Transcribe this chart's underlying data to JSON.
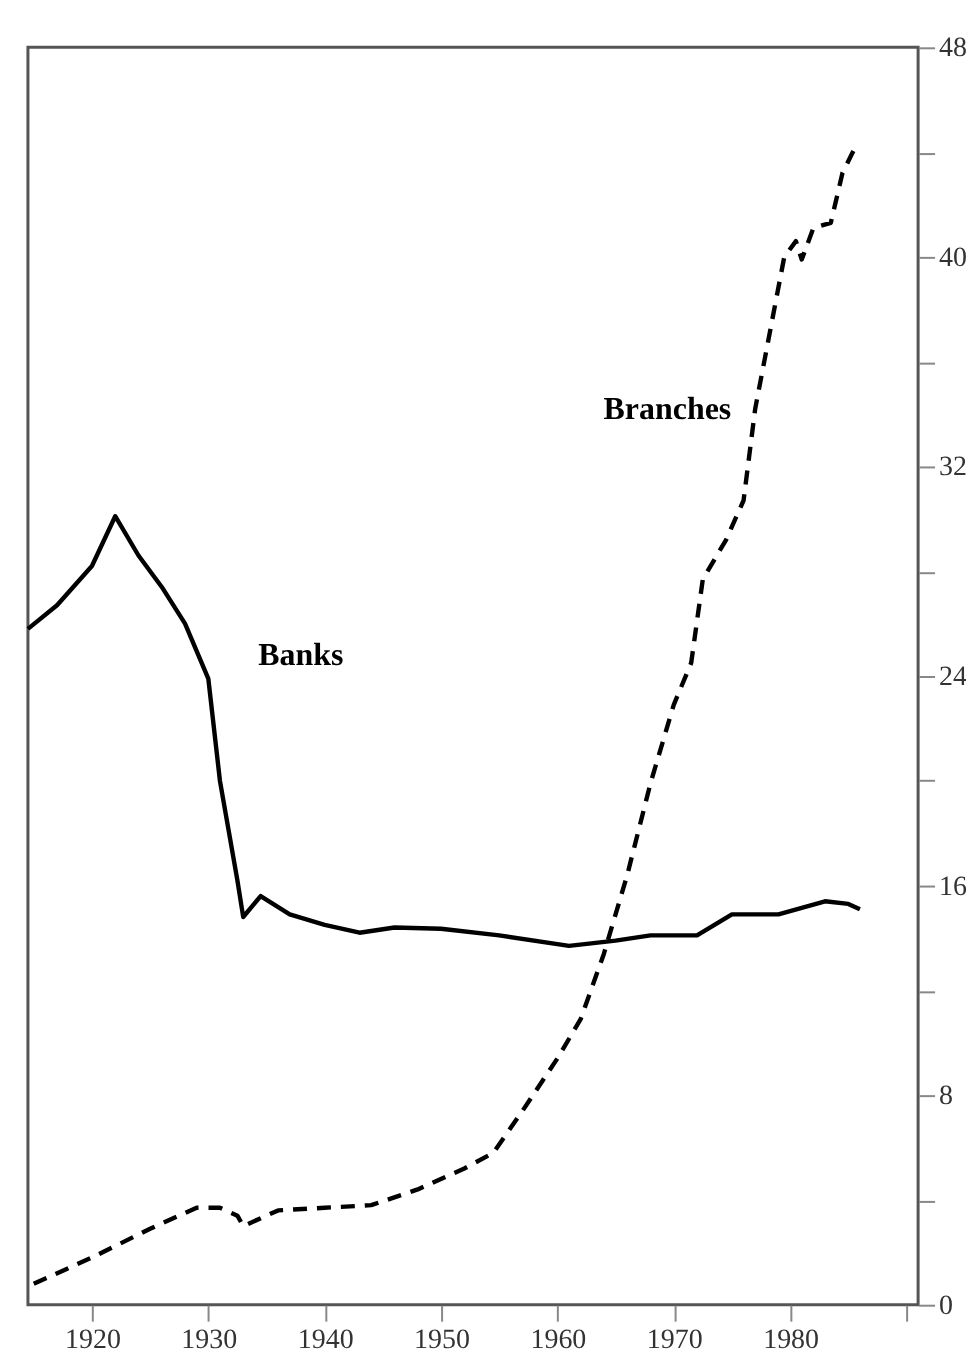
{
  "chart_data": {
    "type": "line",
    "xlim": [
      1914.5,
      1991
    ],
    "xticks": [
      1920,
      1930,
      1940,
      1950,
      1960,
      1970,
      1980,
      {
        "value": 1990,
        "label": null
      }
    ],
    "ylim": [
      0,
      48
    ],
    "yticks": [
      0,
      {
        "value": 4,
        "label": null
      },
      8,
      {
        "value": 12,
        "label": null
      },
      16,
      {
        "value": 20,
        "label": null
      },
      24,
      {
        "value": 28,
        "label": null
      },
      32,
      {
        "value": 36,
        "label": null
      },
      40,
      {
        "value": 44,
        "label": null
      },
      48
    ],
    "grid": false,
    "legend": false,
    "series": [
      {
        "name": "Banks",
        "color": "#000000",
        "line_style": "solid",
        "x": [
          1914.5,
          1917,
          1920,
          1922,
          1924,
          1926,
          1928,
          1930,
          1931,
          1932.5,
          1933,
          1934.5,
          1937,
          1940,
          1943,
          1946,
          1950,
          1955,
          1961,
          1965,
          1968,
          1972,
          1975,
          1979,
          1983,
          1985,
          1986
        ],
        "values": [
          25.8,
          26.7,
          28.2,
          30.1,
          28.6,
          27.4,
          26,
          23.9,
          20,
          16.2,
          14.8,
          15.6,
          14.9,
          14.5,
          14.2,
          14.4,
          14.35,
          14.1,
          13.7,
          13.9,
          14.1,
          14.1,
          14.9,
          14.9,
          15.4,
          15.3,
          15.1
        ]
      },
      {
        "name": "Branches",
        "color": "#000000",
        "line_style": "dashed",
        "x": [
          1915,
          1920,
          1925,
          1929,
          1931,
          1932.5,
          1933,
          1936,
          1940,
          1944,
          1948,
          1952,
          1954.5,
          1957,
          1960,
          1962,
          1964,
          1966,
          1968,
          1970,
          1971.5,
          1972.5,
          1974.5,
          1976,
          1977,
          1979.5,
          1980.5,
          1981,
          1982,
          1983.5,
          1984.5,
          1985.5
        ],
        "values": [
          0.8,
          1.8,
          2.9,
          3.7,
          3.7,
          3.4,
          3.0,
          3.6,
          3.7,
          3.8,
          4.4,
          5.2,
          5.8,
          7.4,
          9.4,
          10.9,
          13.4,
          16.4,
          19.9,
          22.9,
          24.5,
          27.7,
          29.2,
          30.7,
          34.2,
          40.0,
          40.6,
          39.9,
          41.1,
          41.3,
          43.2,
          44.1
        ]
      }
    ]
  }
}
